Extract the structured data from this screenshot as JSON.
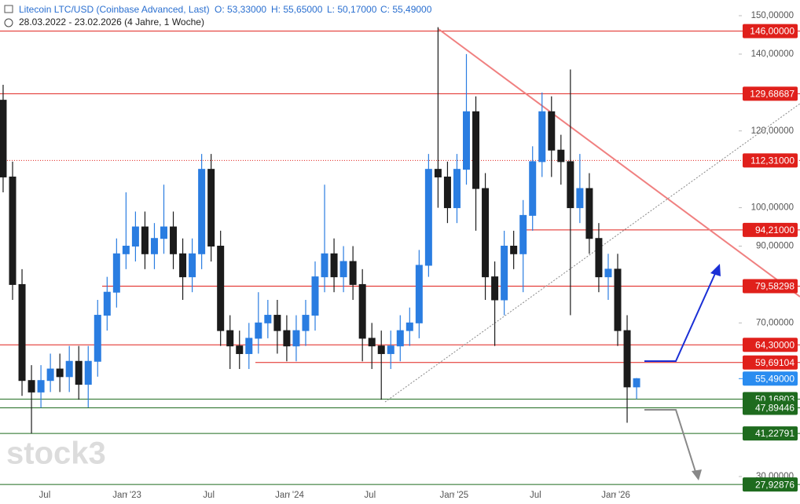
{
  "chart_data": {
    "type": "candlestick",
    "title": "Litecoin LTC/USD (Coinbase Advanced, Last)",
    "ohlc_labels": [
      "O: 53,33000",
      "H: 55,65000",
      "L: 50,17000",
      "C: 55,49000"
    ],
    "subtitle": "28.03.2022 - 23.02.2026 (4 Jahre, 1 Woche)",
    "watermark": "stock3",
    "up_color": "#2a7de1",
    "down_color": "#1b1b1b",
    "candles": {
      "open": [
        128,
        108,
        80,
        55,
        52,
        55,
        58,
        56,
        60,
        54,
        60,
        72,
        78,
        88,
        90,
        95,
        88,
        92,
        95,
        88,
        82,
        88,
        110,
        90,
        68,
        64,
        62,
        66,
        70,
        72,
        68,
        64,
        68,
        72,
        82,
        88,
        82,
        86,
        80,
        66,
        64,
        62,
        64,
        68,
        70,
        85,
        110,
        108,
        100,
        110,
        125,
        105,
        82,
        76,
        90,
        88,
        98,
        112,
        125,
        115,
        112,
        100,
        105,
        92,
        82,
        84,
        68,
        53.33
      ],
      "high": [
        132,
        112,
        84,
        59,
        59,
        62,
        62,
        64,
        64,
        64,
        76,
        82,
        92,
        104,
        99,
        99,
        96,
        106,
        99,
        92,
        92,
        114,
        114,
        94,
        72,
        68,
        70,
        78,
        76,
        76,
        72,
        72,
        76,
        86,
        106,
        92,
        90,
        90,
        84,
        70,
        68,
        68,
        72,
        74,
        89,
        114,
        147,
        112,
        114,
        140,
        129,
        109,
        86,
        94,
        94,
        102,
        116,
        130,
        129,
        119,
        136,
        114,
        109,
        96,
        88,
        88,
        72,
        55.65
      ],
      "low": [
        104,
        76,
        51,
        41.2,
        47.9,
        52,
        52,
        52,
        50,
        48,
        56,
        68,
        74,
        84,
        86,
        84,
        84,
        88,
        84,
        76,
        78,
        84,
        86,
        64,
        58,
        58,
        58,
        62,
        66,
        62,
        60,
        60,
        64,
        68,
        78,
        78,
        78,
        76,
        60,
        58,
        50,
        58,
        60,
        64,
        66,
        82,
        100,
        96,
        96,
        106,
        94,
        76,
        64,
        72,
        84,
        78,
        94,
        108,
        108,
        106,
        72,
        96,
        88,
        78,
        76,
        64,
        44,
        50.17
      ],
      "close": [
        108,
        80,
        55,
        52,
        55,
        58,
        56,
        60,
        54,
        60,
        72,
        78,
        88,
        90,
        95,
        88,
        92,
        95,
        88,
        82,
        88,
        110,
        90,
        68,
        64,
        62,
        66,
        70,
        72,
        68,
        64,
        68,
        72,
        82,
        88,
        82,
        86,
        80,
        66,
        64,
        62,
        64,
        68,
        70,
        85,
        110,
        108,
        100,
        110,
        125,
        105,
        82,
        76,
        90,
        88,
        98,
        112,
        125,
        115,
        112,
        100,
        105,
        92,
        82,
        84,
        68,
        53.33,
        55.49
      ]
    },
    "last_price": {
      "value": 55.49,
      "label": "55,49000",
      "color": "#2a8cf0"
    },
    "levels": [
      {
        "value": 146.0,
        "label": "146,00000",
        "color": "#e0201b"
      },
      {
        "value": 129.68687,
        "label": "129,68687",
        "color": "#e0201b"
      },
      {
        "value": 112.31,
        "label": "112,31000",
        "color": "#e0201b",
        "dotted": true
      },
      {
        "value": 94.21,
        "label": "94,21000",
        "color": "#e0201b"
      },
      {
        "value": 79.58298,
        "label": "79,58298",
        "color": "#e0201b"
      },
      {
        "value": 64.3,
        "label": "64,30000",
        "color": "#e0201b"
      },
      {
        "value": 59.69104,
        "label": "59,69104",
        "color": "#e0201b"
      },
      {
        "value": 50.16803,
        "label": "50,16803",
        "color": "#1e6b1e"
      },
      {
        "value": 47.89446,
        "label": "47,89446",
        "color": "#1e6b1e"
      },
      {
        "value": 41.22791,
        "label": "41,22791",
        "color": "#1e6b1e"
      },
      {
        "value": 27.92876,
        "label": "27,92876",
        "color": "#1e6b1e"
      }
    ],
    "xlim": [
      -0.33,
      77.8
    ],
    "xticks": [
      {
        "value": 4.4,
        "label": "Jul"
      },
      {
        "value": 13.1,
        "label": "Jan '23"
      },
      {
        "value": 21.75,
        "label": "Jul"
      },
      {
        "value": 30.3,
        "label": "Jan '24"
      },
      {
        "value": 38.8,
        "label": "Jul"
      },
      {
        "value": 47.7,
        "label": "Jan '25"
      },
      {
        "value": 56.3,
        "label": "Jul"
      },
      {
        "value": 64.8,
        "label": "Jan '26"
      }
    ],
    "ylim": [
      25.91,
      154.09
    ],
    "yticks": [
      {
        "value": 30,
        "label": "30,00000"
      },
      {
        "value": 70,
        "label": "70,00000"
      },
      {
        "value": 90,
        "label": "90,00000"
      },
      {
        "value": 100,
        "label": "100,00000"
      },
      {
        "value": 120,
        "label": "120,00000"
      },
      {
        "value": 140,
        "label": "140,00000"
      },
      {
        "value": 150,
        "label": "150,00000"
      }
    ]
  }
}
